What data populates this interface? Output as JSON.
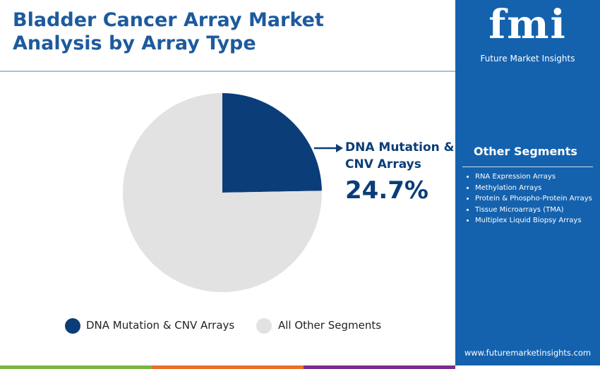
{
  "chart_data": {
    "type": "pie",
    "title": "Bladder Cancer Array Market Analysis by Array Type",
    "categories": [
      "DNA Mutation & CNV Arrays",
      "All Other Segments"
    ],
    "values": [
      24.7,
      75.3
    ],
    "value_labels": [
      "24.7%",
      null
    ],
    "colors": [
      "#0b3d78",
      "#e2e2e2"
    ]
  },
  "brand": {
    "logo": "fmi",
    "name": "Future Market Insights",
    "website": "www.futuremarketinsights.com"
  },
  "other_segments": {
    "title": "Other Segments",
    "items": [
      "RNA Expression Arrays",
      "Methylation Arrays",
      "Protein & Phospho-Protein Arrays",
      "Tissue Microarrays (TMA)",
      "Multiplex Liquid Biopsy Arrays"
    ]
  }
}
